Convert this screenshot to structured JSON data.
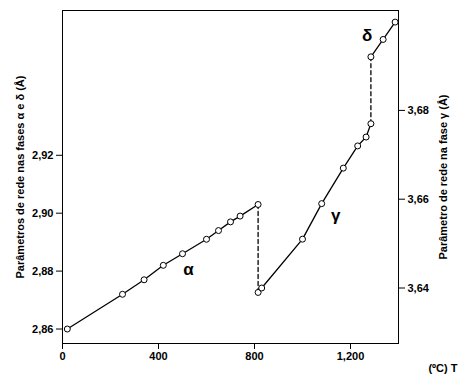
{
  "chart_data": {
    "type": "line",
    "x_label": "(ºC) T",
    "y_label": "Parâmetros de rede nas fases α e δ (Å)",
    "y2_label": "Parâmetro de rede na fase γ (Å)",
    "xlim": [
      0,
      1400
    ],
    "xticks": [
      0,
      400,
      800,
      1200
    ],
    "ylim": [
      2.855,
      2.97
    ],
    "yticks": [
      {
        "value": 2.86,
        "label": "2,86"
      },
      {
        "value": 2.88,
        "label": "2,88"
      },
      {
        "value": 2.9,
        "label": "2,90"
      },
      {
        "value": 2.92,
        "label": "2,92"
      }
    ],
    "y2lim": [
      3.6275,
      3.7025
    ],
    "y2ticks": [
      {
        "value": 3.64,
        "label": "3,64"
      },
      {
        "value": 3.66,
        "label": "3,66"
      },
      {
        "value": 3.68,
        "label": "3,68"
      }
    ],
    "color": "#000000",
    "marker": "circle",
    "series": [
      {
        "name": "α",
        "x": [
          20,
          250,
          340,
          420,
          500,
          600,
          650,
          700,
          740,
          815
        ],
        "values": [
          2.86,
          2.872,
          2.877,
          2.882,
          2.886,
          2.891,
          2.894,
          2.897,
          2.899,
          2.903
        ]
      },
      {
        "name": "γ",
        "axis": "y2",
        "x": [
          815,
          830,
          1000,
          1080,
          1170,
          1230,
          1265,
          1285
        ],
        "values": [
          3.639,
          3.64,
          3.651,
          3.659,
          3.667,
          3.672,
          3.674,
          3.677
        ]
      },
      {
        "name": "δ",
        "x": [
          1285,
          1336,
          1386
        ],
        "values": [
          2.954,
          2.96,
          2.966
        ]
      }
    ]
  }
}
